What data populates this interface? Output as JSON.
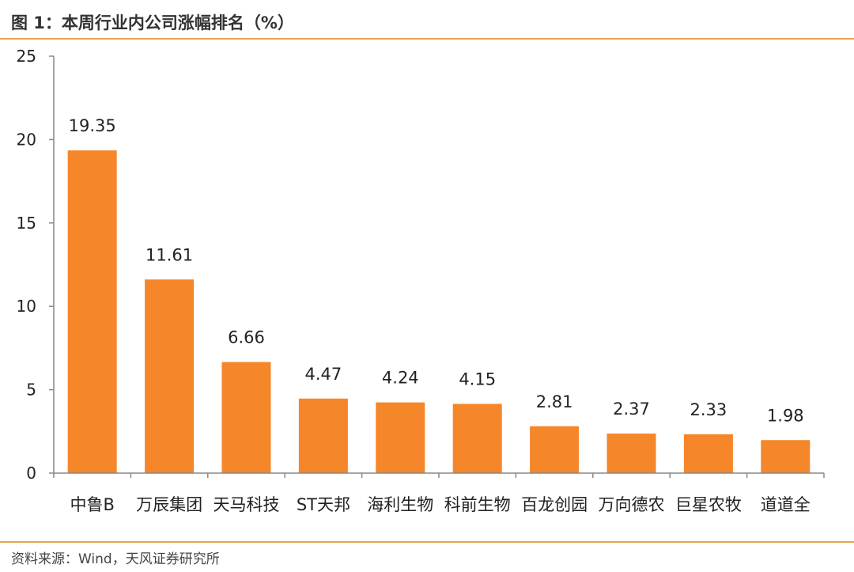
{
  "header": {
    "title": "图 1：本周行业内公司涨幅排名（%）"
  },
  "footer": {
    "source": "资料来源：Wind，天风证券研究所"
  },
  "colors": {
    "bar": "#f5862a",
    "rule": "#f0a050",
    "axis": "#888888"
  },
  "chart_data": {
    "type": "bar",
    "title": "图 1：本周行业内公司涨幅排名（%）",
    "categories": [
      "中鲁B",
      "万辰集团",
      "天马科技",
      "ST天邦",
      "海利生物",
      "科前生物",
      "百龙创园",
      "万向德农",
      "巨星农牧",
      "道道全"
    ],
    "values": [
      19.35,
      11.61,
      6.66,
      4.47,
      4.24,
      4.15,
      2.81,
      2.37,
      2.33,
      1.98
    ],
    "value_labels": [
      "19.35",
      "11.61",
      "6.66",
      "4.47",
      "4.24",
      "4.15",
      "2.81",
      "2.37",
      "2.33",
      "1.98"
    ],
    "ylim": [
      0,
      25
    ],
    "yticks": [
      "0",
      "5",
      "10",
      "15",
      "20",
      "25"
    ],
    "xlabel": "",
    "ylabel": "",
    "grid": false,
    "legend": "none"
  }
}
